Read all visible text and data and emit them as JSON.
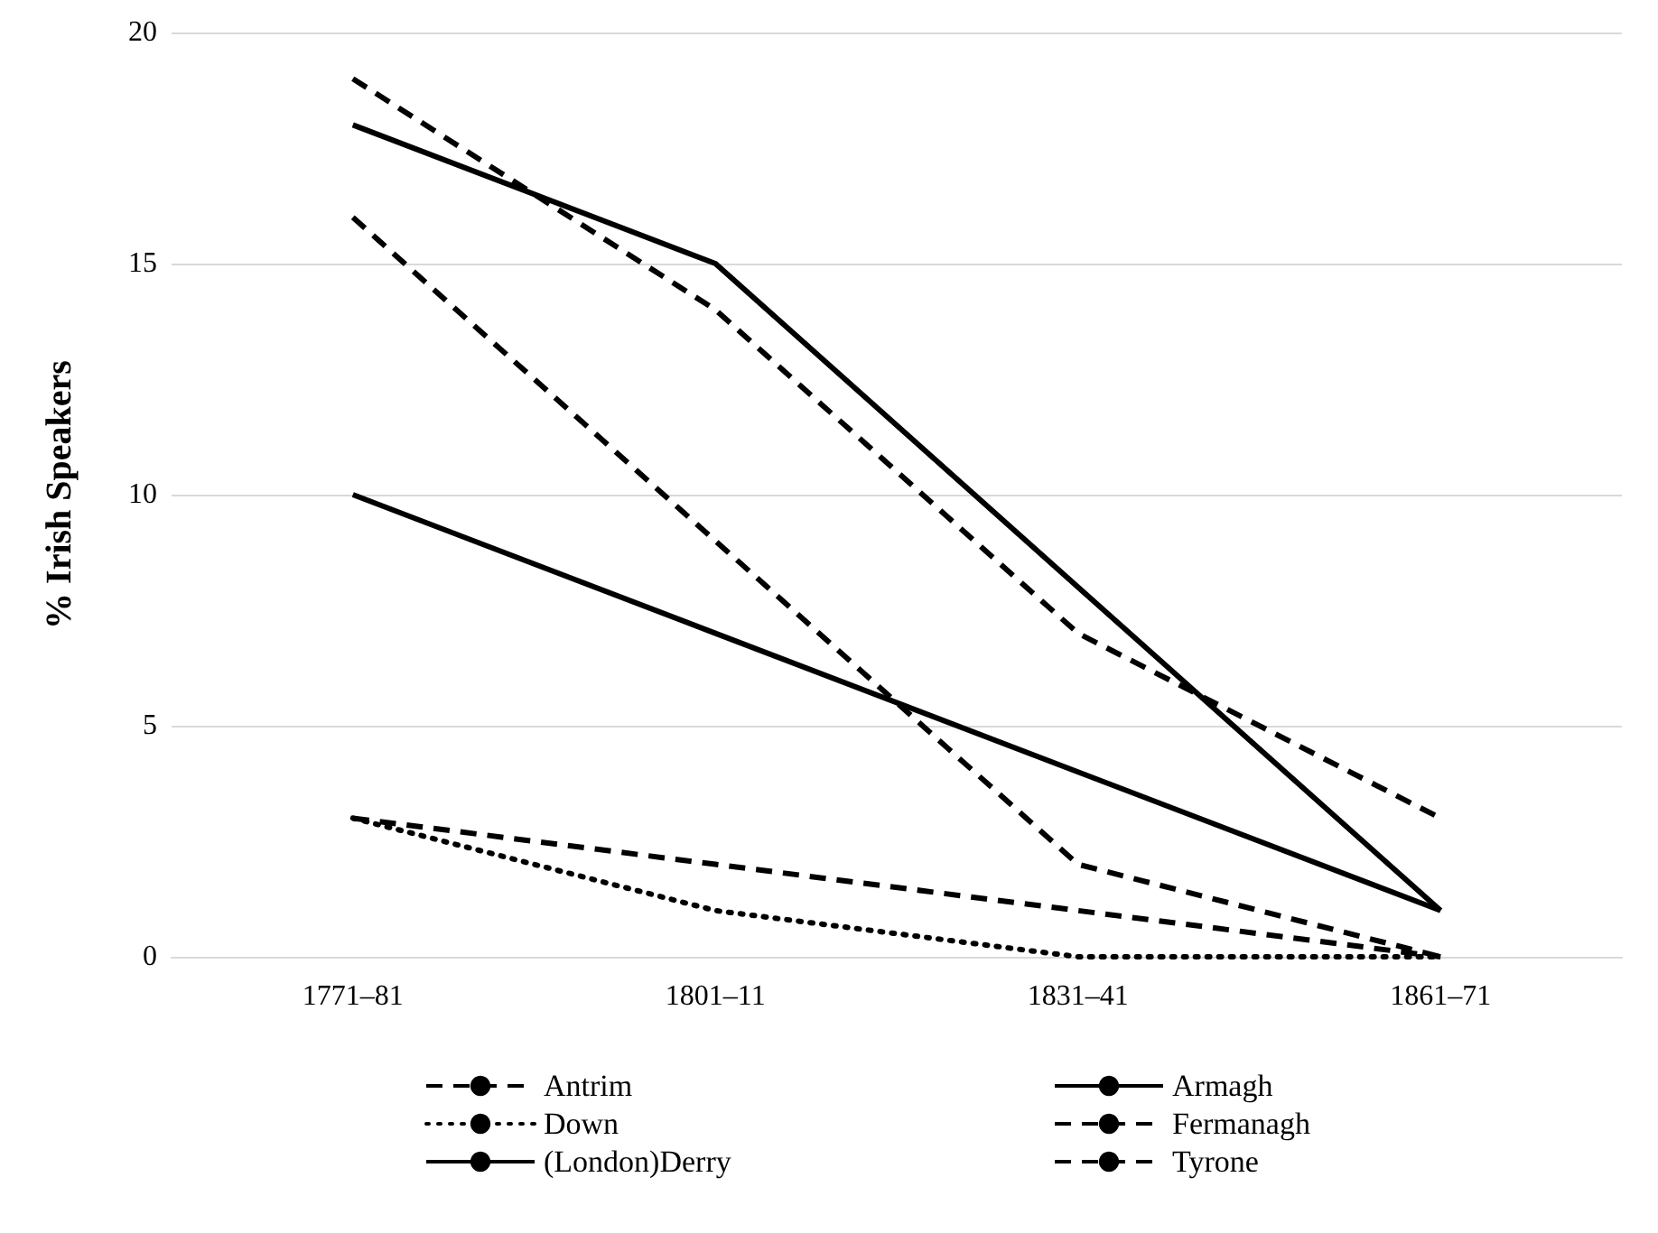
{
  "chart_data": {
    "type": "line",
    "ylabel": "% Irish Speakers",
    "categories": [
      "1771–81",
      "1801–11",
      "1831–41",
      "1861–71"
    ],
    "series": [
      {
        "name": "Antrim",
        "color": "#000000",
        "line_style": "dashed",
        "values": [
          3,
          2,
          1,
          0
        ]
      },
      {
        "name": "Armagh",
        "color": "#000000",
        "line_style": "solid",
        "values": [
          18,
          15,
          8,
          1
        ]
      },
      {
        "name": "Down",
        "color": "#000000",
        "line_style": "dotted",
        "values": [
          3,
          1,
          0,
          0
        ]
      },
      {
        "name": "Fermanagh",
        "color": "#000000",
        "line_style": "dashed",
        "values": [
          16,
          9,
          2,
          0
        ]
      },
      {
        "name": "(London)Derry",
        "color": "#000000",
        "line_style": "solid",
        "values": [
          10,
          7,
          4,
          1
        ]
      },
      {
        "name": "Tyrone",
        "color": "#000000",
        "line_style": "dashed",
        "values": [
          19,
          14,
          7,
          3
        ]
      }
    ],
    "ylim": [
      0,
      20
    ],
    "yticks": [
      0,
      5,
      10,
      15,
      20
    ],
    "grid": "y",
    "legend": "bottom",
    "marker": "none"
  }
}
